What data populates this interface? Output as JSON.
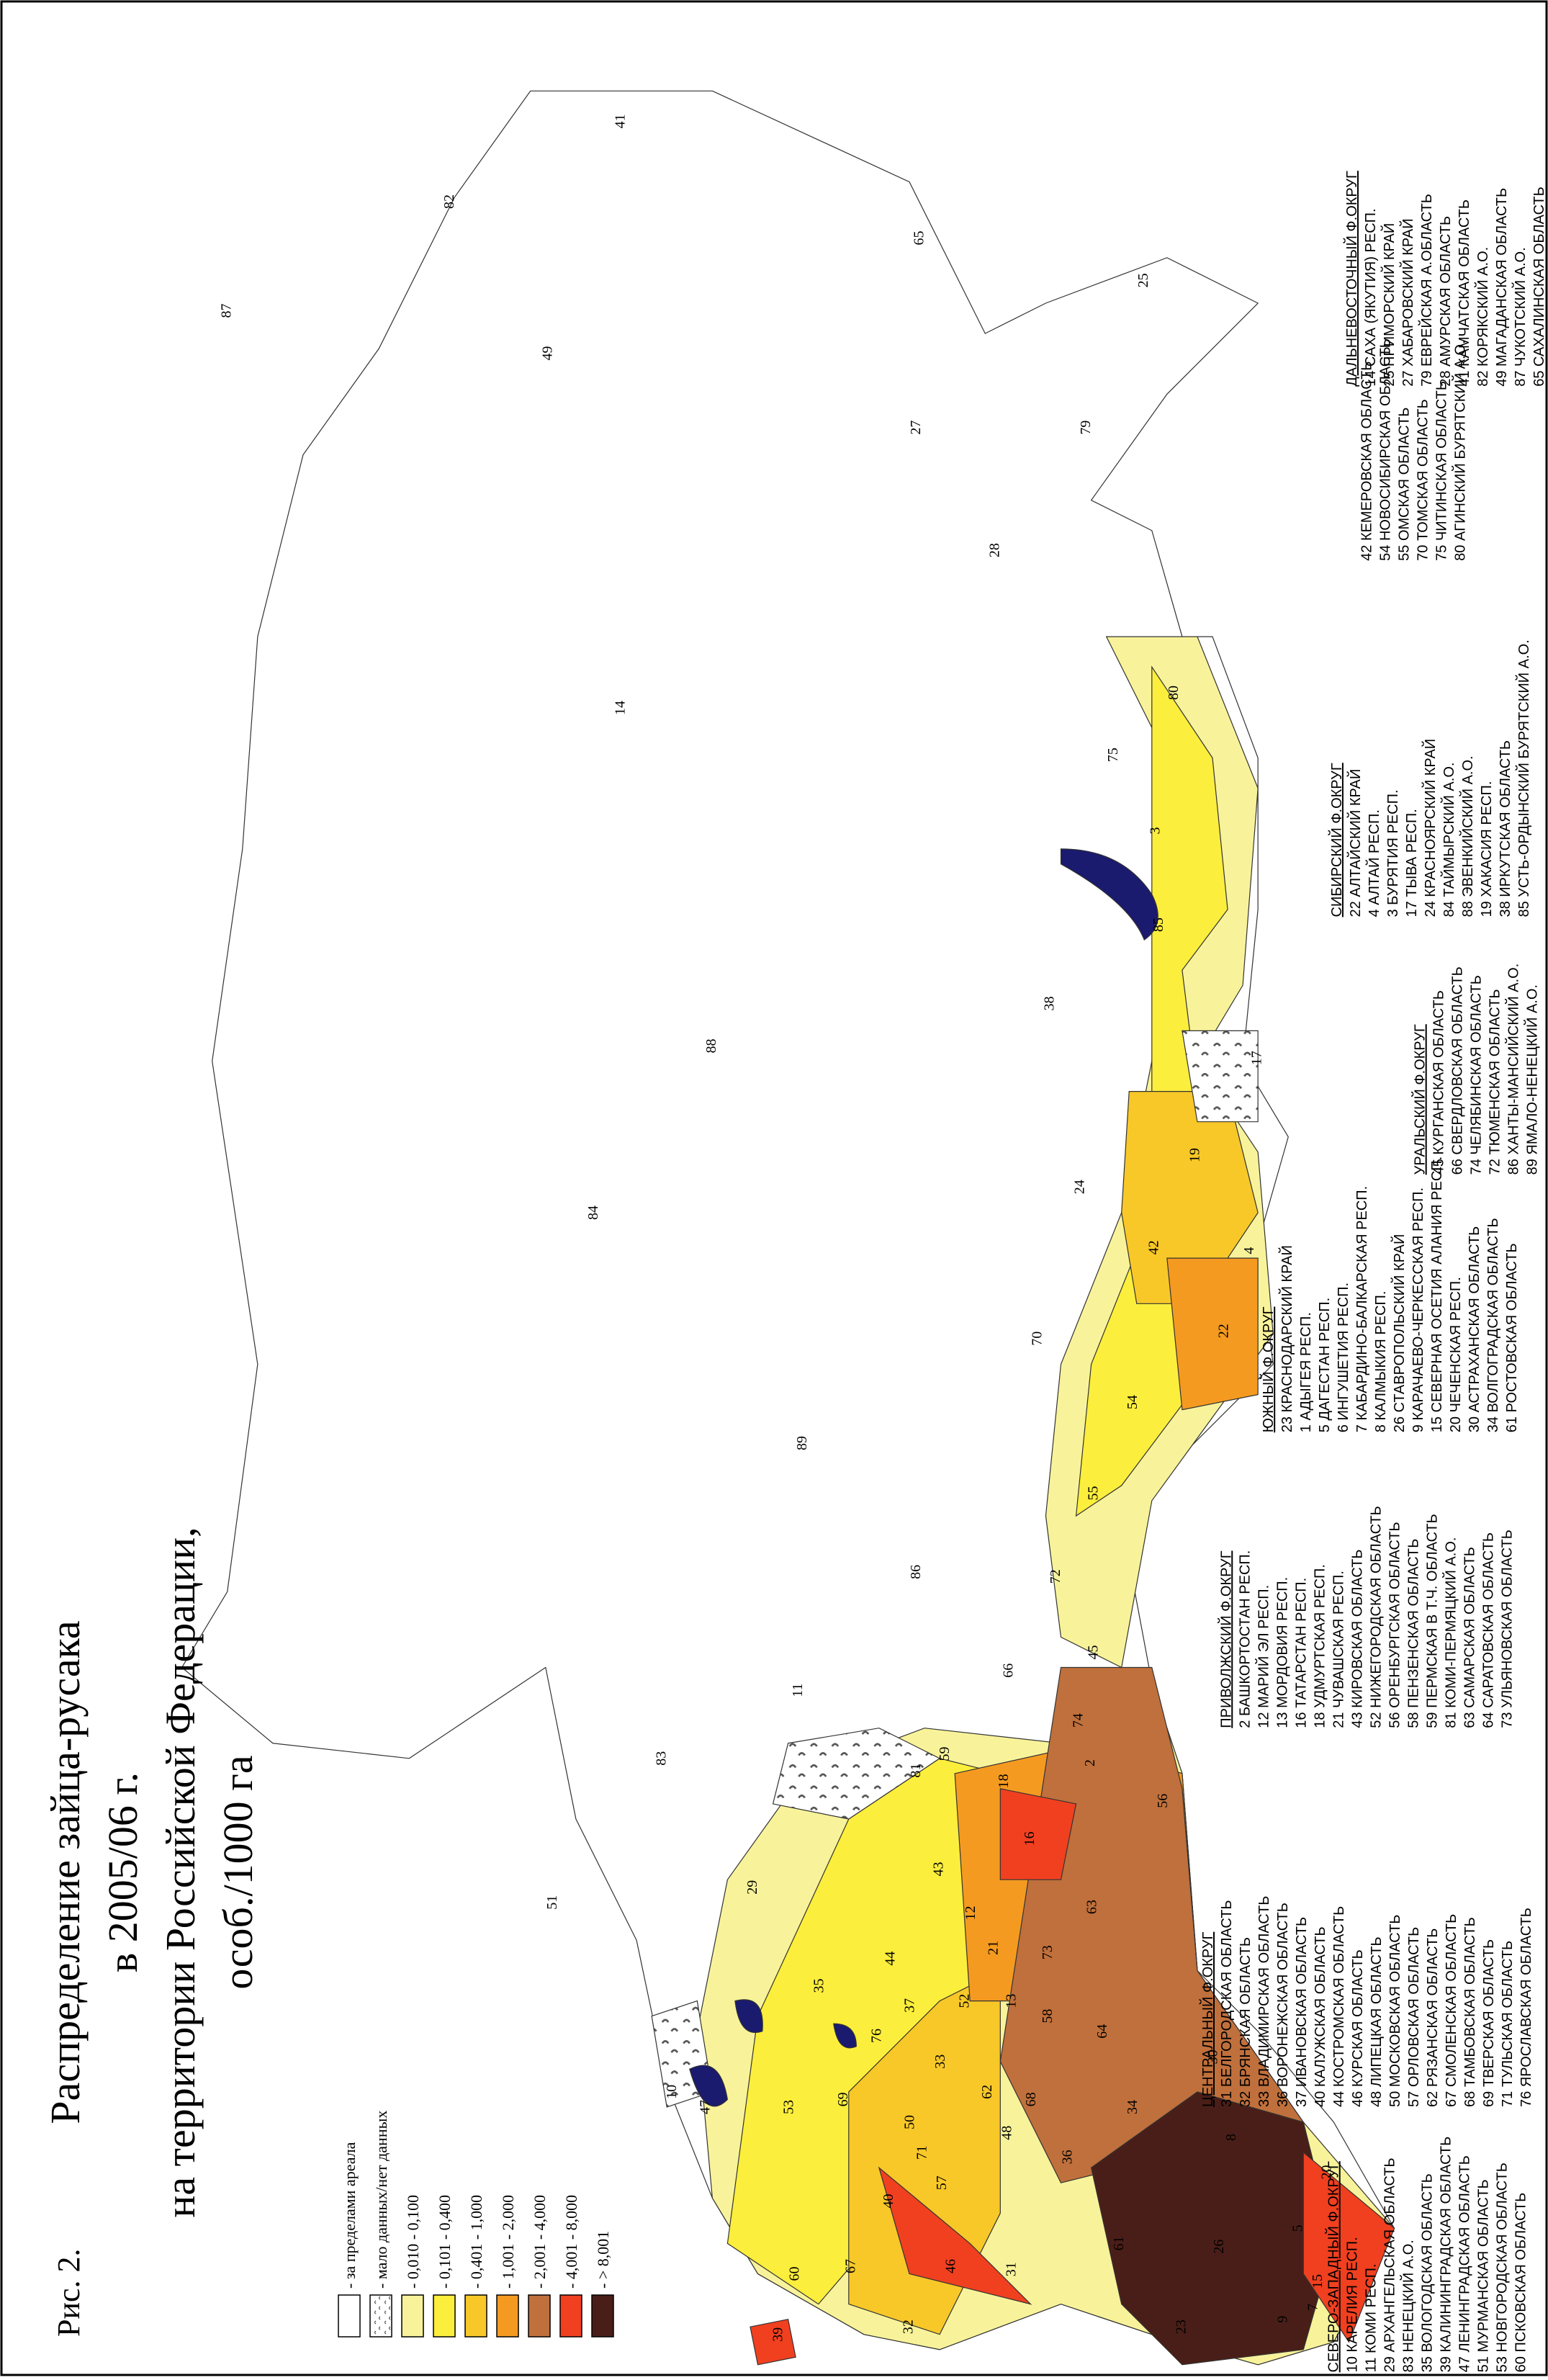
{
  "figure_label": "Рис. 2.",
  "title": [
    "Распределение зайца-русака",
    "в 2005/06 г.",
    "на территории Российской Федерации,",
    "особ./1000 га"
  ],
  "legend": [
    {
      "label": "- за пределами ареала",
      "color": "#ffffff"
    },
    {
      "label": "- мало данных/нет данных",
      "color": "#ffffff"
    },
    {
      "label": "- 0,010 - 0,100",
      "color": "#f8f39a"
    },
    {
      "label": "- 0,101 - 0,400",
      "color": "#fcee3c"
    },
    {
      "label": "- 0,401 - 1,000",
      "color": "#f8c828"
    },
    {
      "label": "- 1,001 - 2,000",
      "color": "#f59a20"
    },
    {
      "label": "- 2,001 - 4,000",
      "color": "#c0703c"
    },
    {
      "label": "- 4,001 - 8,000",
      "color": "#f04020"
    },
    {
      "label": "- > 8,001",
      "color": "#4a1e18"
    }
  ],
  "districts": [
    {
      "name": "СЕВЕРО-ЗАПАДНЫЙ Ф.ОКРУГ",
      "regions": [
        "10 КАРЕЛИЯ РЕСП.",
        "11 КОМИ РЕСП.",
        "29 АРХАНГЕЛЬСКАЯ ОБЛАСТЬ",
        "83 НЕНЕЦКИЙ А.О.",
        "35 ВОЛОГОДСКАЯ ОБЛАСТЬ",
        "39 КАЛИНИНГРАДСКАЯ ОБЛАСТЬ",
        "47 ЛЕНИНГРАДСКАЯ ОБЛАСТЬ",
        "51 МУРМАНСКАЯ ОБЛАСТЬ",
        "53 НОВГОРОДСКАЯ ОБЛАСТЬ",
        "60 ПСКОВСКАЯ ОБЛАСТЬ"
      ]
    },
    {
      "name": "ЦЕНТРАЛЬНЫЙ Ф.ОКРУГ",
      "regions": [
        "31 БЕЛГОРОДСКАЯ ОБЛАСТЬ",
        "32 БРЯНСКАЯ ОБЛАСТЬ",
        "33 ВЛАДИМИРСКАЯ ОБЛАСТЬ",
        "36 ВОРОНЕЖСКАЯ ОБЛАСТЬ",
        "37 ИВАНОВСКАЯ ОБЛАСТЬ",
        "40 КАЛУЖСКАЯ ОБЛАСТЬ",
        "44 КОСТРОМСКАЯ ОБЛАСТЬ",
        "46 КУРСКАЯ ОБЛАСТЬ",
        "48 ЛИПЕЦКАЯ ОБЛАСТЬ",
        "50 МОСКОВСКАЯ ОБЛАСТЬ",
        "57 ОРЛОВСКАЯ ОБЛАСТЬ",
        "62 РЯЗАНСКАЯ ОБЛАСТЬ",
        "67 СМОЛЕНСКАЯ ОБЛАСТЬ",
        "68 ТАМБОВСКАЯ ОБЛАСТЬ",
        "69 ТВЕРСКАЯ ОБЛАСТЬ",
        "71 ТУЛЬСКАЯ ОБЛАСТЬ",
        "76 ЯРОСЛАВСКАЯ ОБЛАСТЬ"
      ]
    },
    {
      "name": "ПРИВОЛЖСКИЙ Ф.ОКРУГ",
      "regions": [
        "2 БАШКОРТОСТАН РЕСП.",
        "12 МАРИЙ ЭЛ РЕСП.",
        "13 МОРДОВИЯ РЕСП.",
        "16 ТАТАРСТАН РЕСП.",
        "18 УДМУРТСКАЯ РЕСП.",
        "21 ЧУВАШСКАЯ РЕСП.",
        "43 КИРОВСКАЯ ОБЛАСТЬ",
        "52 НИЖЕГОРОДСКАЯ ОБЛАСТЬ",
        "56 ОРЕНБУРГСКАЯ ОБЛАСТЬ",
        "58 ПЕНЗЕНСКАЯ ОБЛАСТЬ",
        "59 ПЕРМСКАЯ В Т.Ч. ОБЛАСТЬ",
        "81 КОМИ-ПЕРМЯЦКИЙ А.О.",
        "63 САМАРСКАЯ ОБЛАСТЬ",
        "64 САРАТОВСКАЯ ОБЛАСТЬ",
        "73 УЛЬЯНОВСКАЯ ОБЛАСТЬ"
      ]
    },
    {
      "name": "ЮЖНЫЙ Ф.ОКРУГ",
      "regions": [
        "23 КРАСНОДАРСКИЙ КРАЙ",
        "1 АДЫГЕЯ РЕСП.",
        "5 ДАГЕСТАН РЕСП.",
        "6 ИНГУШЕТИЯ РЕСП.",
        "7 КАБАРДИНО-БАЛКАРСКАЯ РЕСП.",
        "8 КАЛМЫКИЯ РЕСП.",
        "26 СТАВРОПОЛЬСКИЙ КРАЙ",
        "9 КАРАЧАЕВО-ЧЕРКЕССКАЯ РЕСП.",
        "15 СЕВЕРНАЯ ОСЕТИЯ АЛАНИЯ РЕСП.",
        "20 ЧЕЧЕНСКАЯ РЕСП.",
        "30 АСТРАХАНСКАЯ ОБЛАСТЬ",
        "34 ВОЛГОГРАДСКАЯ ОБЛАСТЬ",
        "61 РОСТОВСКАЯ ОБЛАСТЬ"
      ]
    },
    {
      "name": "УРАЛЬСКИЙ Ф.ОКРУГ",
      "regions": [
        "45 КУРГАНСКАЯ ОБЛАСТЬ",
        "66 СВЕРДЛОВСКАЯ ОБЛАСТЬ",
        "74 ЧЕЛЯБИНСКАЯ ОБЛАСТЬ",
        "72 ТЮМЕНСКАЯ ОБЛАСТЬ",
        "86 ХАНТЫ-МАНСИЙСКИЙ А.О.",
        "89 ЯМАЛО-НЕНЕЦКИЙ А.О."
      ]
    },
    {
      "name": "СИБИРСКИЙ Ф.ОКРУГ",
      "regions": [
        "22 АЛТАЙСКИЙ КРАЙ",
        "4 АЛТАЙ РЕСП.",
        "3 БУРЯТИЯ РЕСП.",
        "17 ТЫВА РЕСП.",
        "24 КРАСНОЯРСКИЙ КРАЙ",
        "84 ТАЙМЫРСКИЙ А.О.",
        "88 ЭВЕНКИЙСКИЙ А.О.",
        "19 ХАКАСИЯ РЕСП.",
        "38 ИРКУТСКАЯ ОБЛАСТЬ",
        "85 УСТЬ-ОРДЫНСКИЙ БУРЯТСКИЙ А.О.",
        "42 КЕМЕРОВСКАЯ ОБЛАСТЬ",
        "54 НОВОСИБИРСКАЯ ОБЛАСТЬ",
        "55 ОМСКАЯ ОБЛАСТЬ",
        "70 ТОМСКАЯ ОБЛАСТЬ",
        "75 ЧИТИНСКАЯ ОБЛАСТЬ",
        "80 АГИНСКИЙ БУРЯТСКИЙ А.О."
      ]
    },
    {
      "name": "ДАЛЬНЕВОСТОЧНЫЙ Ф.ОКРУГ",
      "regions": [
        "14 САХА (ЯКУТИЯ) РЕСП.",
        "25 ПРИМОРСКИЙ КРАЙ",
        "27 ХАБАРОВСКИЙ КРАЙ",
        "79 ЕВРЕЙСКАЯ А.ОБЛАСТЬ",
        "28 АМУРСКАЯ ОБЛАСТЬ",
        "41 КАМЧАТСКАЯ ОБЛАСТЬ",
        "82 КОРЯКСКИЙ А.О.",
        "49 МАГАДАНСКАЯ ОБЛАСТЬ",
        "87 ЧУКОТСКИЙ А.О.",
        "65 САХАЛИНСКАЯ ОБЛАСТЬ"
      ]
    }
  ],
  "map_labels": [
    "41",
    "82",
    "65",
    "87",
    "49",
    "25",
    "27",
    "79",
    "28",
    "14",
    "75",
    "80",
    "3",
    "38",
    "85",
    "88",
    "84",
    "24",
    "17",
    "19",
    "42",
    "4",
    "22",
    "70",
    "54",
    "89",
    "55",
    "86",
    "72",
    "66",
    "11",
    "45",
    "74",
    "83",
    "81",
    "59",
    "2",
    "18",
    "51",
    "29",
    "43",
    "16",
    "56",
    "12",
    "63",
    "44",
    "21",
    "35",
    "73",
    "52",
    "13",
    "37",
    "76",
    "58",
    "64",
    "33",
    "10",
    "30",
    "69",
    "62",
    "68",
    "34",
    "8",
    "47",
    "53",
    "50",
    "48",
    "71",
    "36",
    "57",
    "20",
    "40",
    "5",
    "61",
    "26",
    "67",
    "46",
    "31",
    "15",
    "60",
    "32",
    "9",
    "23",
    "7",
    "39"
  ]
}
